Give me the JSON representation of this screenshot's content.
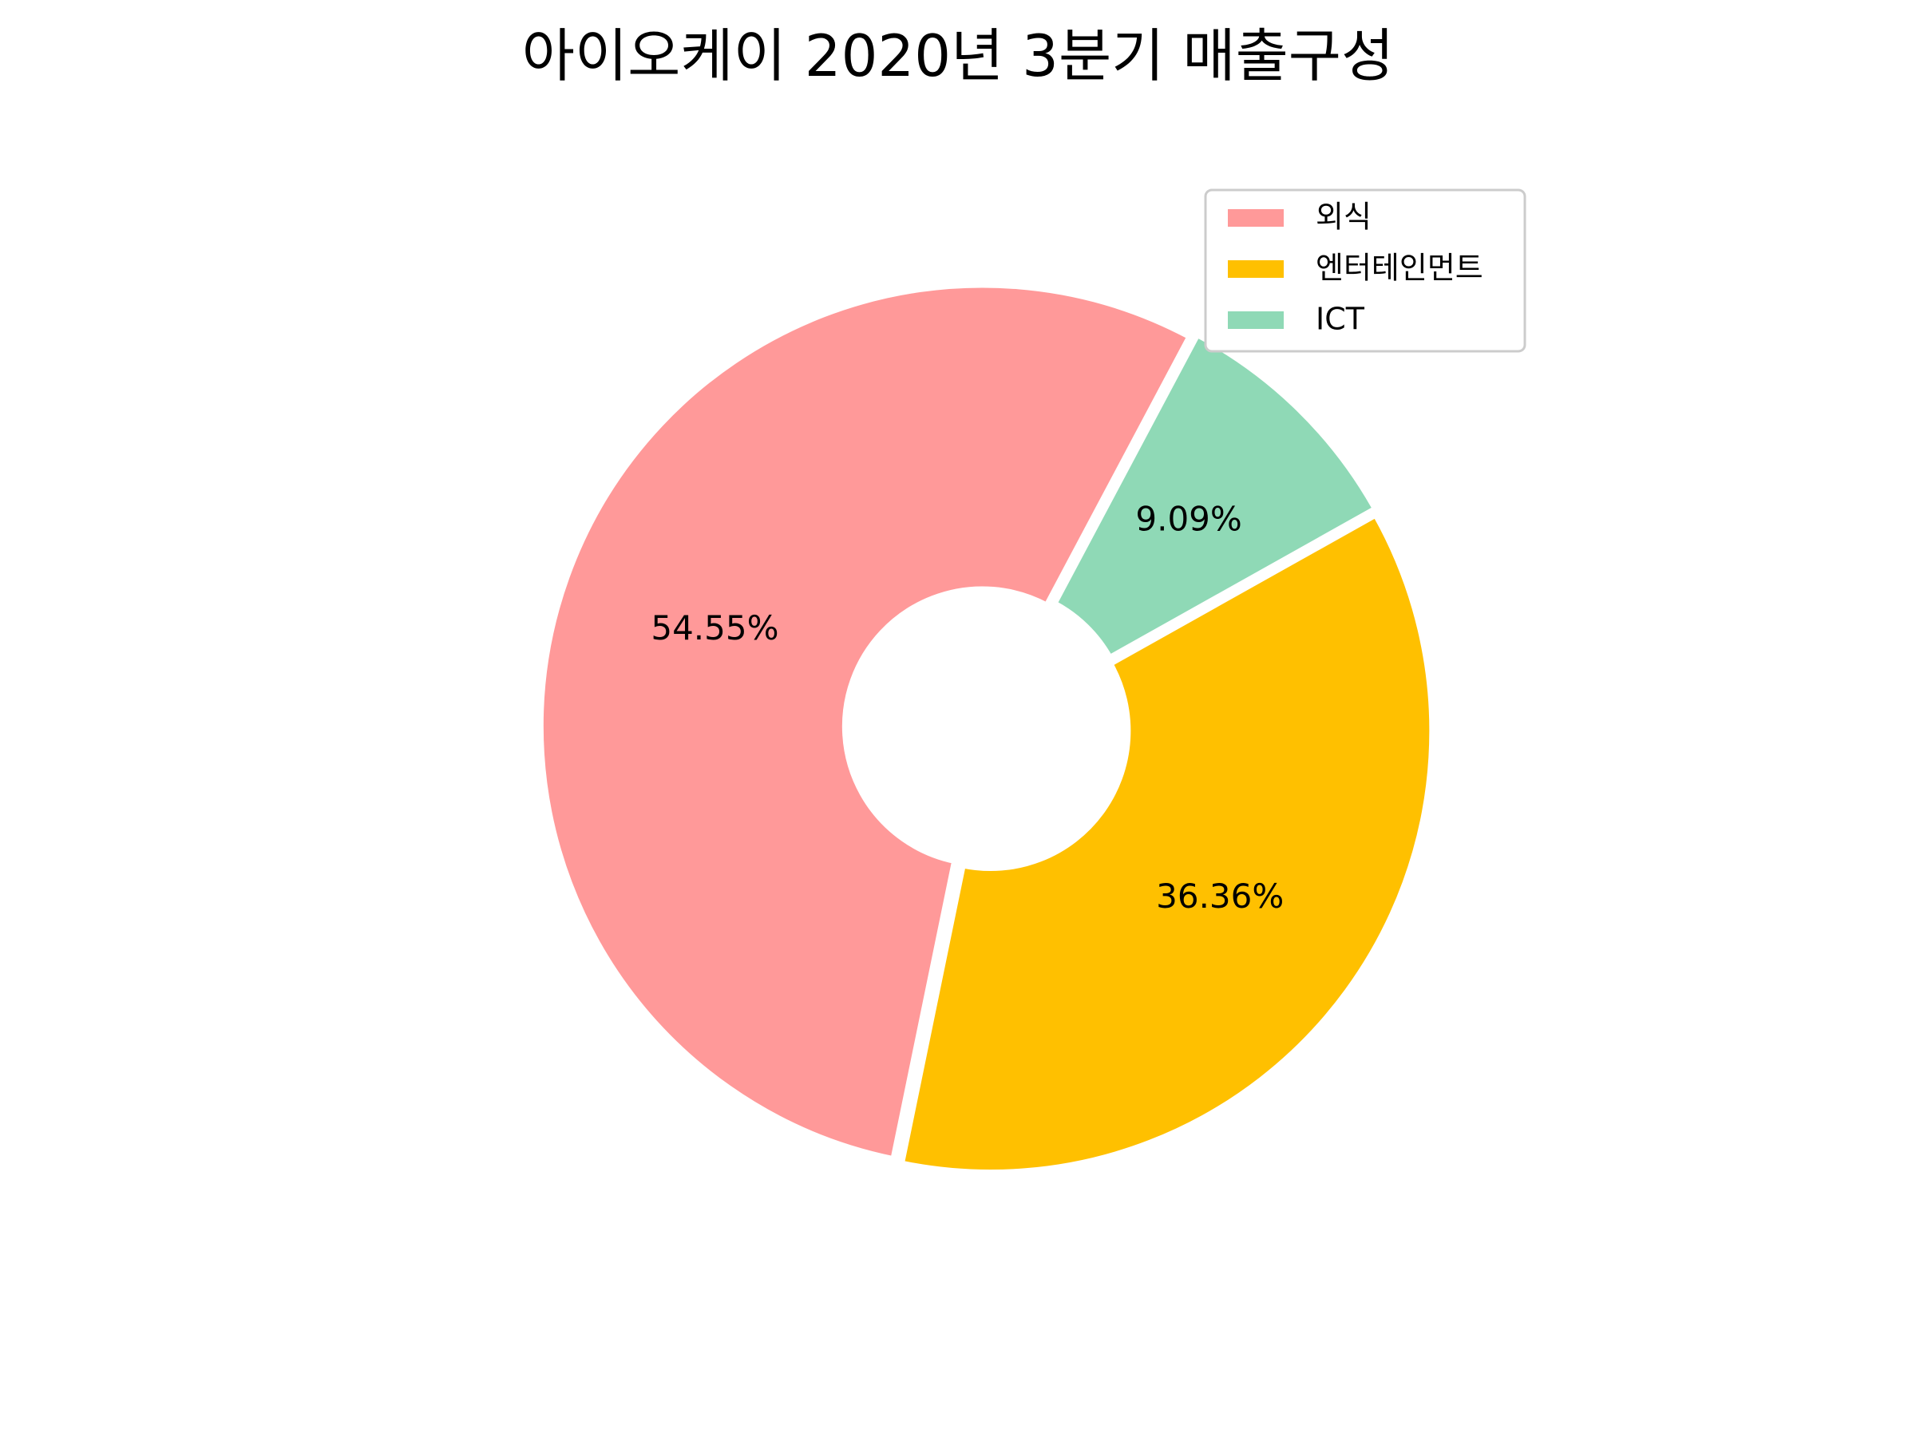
{
  "chart_data": {
    "type": "pie",
    "title": "아이오케이 2020년 3분기 매출구성",
    "categories": [
      "외식",
      "엔터테인먼트",
      "ICT"
    ],
    "values": [
      54.55,
      36.36,
      9.09
    ],
    "labels": [
      "54.55%",
      "36.36%",
      "9.09%"
    ],
    "colors": [
      "#ff9999",
      "#ffc000",
      "#8fd9b6"
    ],
    "donut": true,
    "legend_position": "top-right",
    "grid": false
  }
}
